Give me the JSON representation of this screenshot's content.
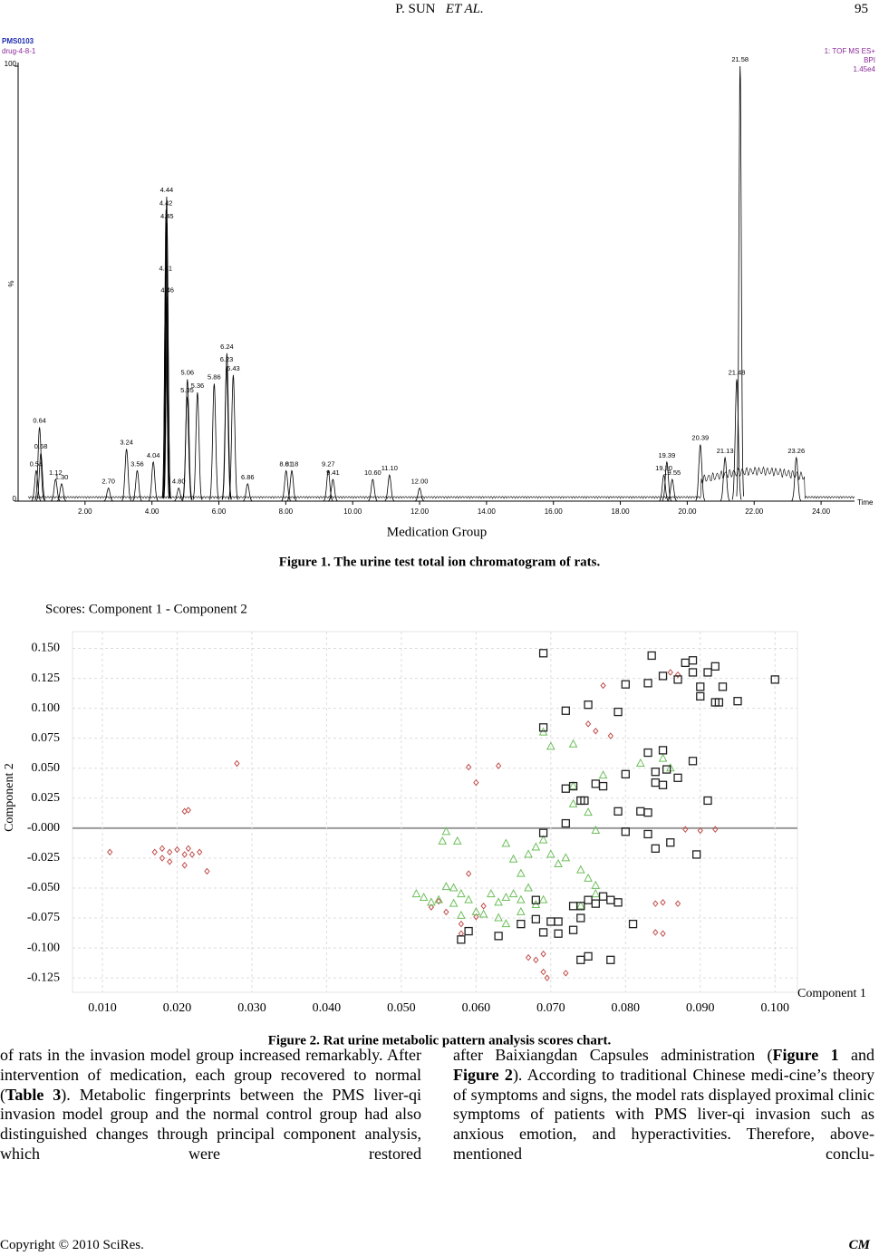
{
  "header": {
    "author": "P. SUN",
    "author_italic": "ET AL.",
    "page": "95"
  },
  "chart_data": [
    {
      "type": "line",
      "title": "Medication Group",
      "x_label": "Time",
      "y_label": "%",
      "annotations": [
        "PMS0103",
        "drug-4-8-1"
      ],
      "right_annotations": [
        "1: TOF MS ES+",
        "BPI",
        "1.45e4"
      ],
      "color": "#000000",
      "xlim": [
        0,
        25
      ],
      "ylim": [
        0,
        100
      ],
      "xticks": [
        {
          "value": 2,
          "label": "2.00"
        },
        {
          "value": 4,
          "label": "4.00"
        },
        {
          "value": 6,
          "label": "6.00"
        },
        {
          "value": 8,
          "label": "8.00"
        },
        {
          "value": 10,
          "label": "10.00"
        },
        {
          "value": 12,
          "label": "12.00"
        },
        {
          "value": 14,
          "label": "14.00"
        },
        {
          "value": 16,
          "label": "16.00"
        },
        {
          "value": 18,
          "label": "18.00"
        },
        {
          "value": 20,
          "label": "20.00"
        },
        {
          "value": 22,
          "label": "22.00"
        },
        {
          "value": 24,
          "label": "24.00"
        }
      ],
      "yticks": [
        0,
        100
      ],
      "peaks": [
        {
          "x": 0.54,
          "label": "0.54",
          "y": 7
        },
        {
          "x": 0.64,
          "label": "0.64",
          "y": 17
        },
        {
          "x": 0.68,
          "label": "0.68",
          "y": 11
        },
        {
          "x": 1.12,
          "label": "1.12",
          "y": 5
        },
        {
          "x": 1.3,
          "label": "1.30",
          "y": 4
        },
        {
          "x": 2.7,
          "label": "2.70",
          "y": 3
        },
        {
          "x": 3.24,
          "label": "3.24",
          "y": 12
        },
        {
          "x": 3.56,
          "label": "3.56",
          "y": 7
        },
        {
          "x": 4.04,
          "label": "4.04",
          "y": 9
        },
        {
          "x": 4.41,
          "label": "4.41",
          "y": 52
        },
        {
          "x": 4.42,
          "label": "4.42",
          "y": 67
        },
        {
          "x": 4.44,
          "label": "4.44",
          "y": 70
        },
        {
          "x": 4.45,
          "label": "4.45",
          "y": 64
        },
        {
          "x": 4.46,
          "label": "4.46",
          "y": 47
        },
        {
          "x": 4.8,
          "label": "4.80",
          "y": 3
        },
        {
          "x": 5.05,
          "label": "5.05",
          "y": 24
        },
        {
          "x": 5.06,
          "label": "5.06",
          "y": 28
        },
        {
          "x": 5.36,
          "label": "5.36",
          "y": 25
        },
        {
          "x": 5.86,
          "label": "5.86",
          "y": 27
        },
        {
          "x": 6.23,
          "label": "6.23",
          "y": 31
        },
        {
          "x": 6.24,
          "label": "6.24",
          "y": 34
        },
        {
          "x": 6.43,
          "label": "6.43",
          "y": 29
        },
        {
          "x": 6.86,
          "label": "6.86",
          "y": 4
        },
        {
          "x": 8.01,
          "label": "8.01",
          "y": 7
        },
        {
          "x": 8.18,
          "label": "8.18",
          "y": 7
        },
        {
          "x": 9.27,
          "label": "9.27",
          "y": 7
        },
        {
          "x": 9.41,
          "label": "9.41",
          "y": 5
        },
        {
          "x": 10.6,
          "label": "10.60",
          "y": 5
        },
        {
          "x": 11.1,
          "label": "11.10",
          "y": 6
        },
        {
          "x": 12,
          "label": "12.00",
          "y": 3
        },
        {
          "x": 19.3,
          "label": "19.30",
          "y": 6
        },
        {
          "x": 19.39,
          "label": "19.39",
          "y": 9
        },
        {
          "x": 19.55,
          "label": "19.55",
          "y": 5
        },
        {
          "x": 20.39,
          "label": "20.39",
          "y": 13
        },
        {
          "x": 21.13,
          "label": "21.13",
          "y": 10
        },
        {
          "x": 21.48,
          "label": "21.48",
          "y": 28
        },
        {
          "x": 21.58,
          "label": "21.58",
          "y": 100
        },
        {
          "x": 23.26,
          "label": "23.26",
          "y": 10
        }
      ]
    },
    {
      "type": "scatter",
      "title": "Scores: Component 1 - Component 2",
      "x_label": "Component 1",
      "y_label": "Component 2",
      "xlim": [
        0.006,
        0.103
      ],
      "ylim": [
        -0.137,
        0.164
      ],
      "grid": true,
      "xticks": [
        {
          "value": 0.01,
          "label": "0.010"
        },
        {
          "value": 0.02,
          "label": "0.020"
        },
        {
          "value": 0.03,
          "label": "0.030"
        },
        {
          "value": 0.04,
          "label": "0.040"
        },
        {
          "value": 0.05,
          "label": "0.050"
        },
        {
          "value": 0.06,
          "label": "0.060"
        },
        {
          "value": 0.07,
          "label": "0.070"
        },
        {
          "value": 0.08,
          "label": "0.080"
        },
        {
          "value": 0.09,
          "label": "0.090"
        },
        {
          "value": 0.1,
          "label": "0.100"
        }
      ],
      "yticks": [
        {
          "value": 0.15,
          "label": "0.150"
        },
        {
          "value": 0.125,
          "label": "0.125"
        },
        {
          "value": 0.1,
          "label": "0.100"
        },
        {
          "value": 0.075,
          "label": "0.075"
        },
        {
          "value": 0.05,
          "label": "0.050"
        },
        {
          "value": 0.025,
          "label": "0.025"
        },
        {
          "value": 0,
          "label": "-0.000"
        },
        {
          "value": -0.025,
          "label": "-0.025"
        },
        {
          "value": -0.05,
          "label": "-0.050"
        },
        {
          "value": -0.075,
          "label": "-0.075"
        },
        {
          "value": -0.1,
          "label": "-0.100"
        },
        {
          "value": -0.125,
          "label": "-0.125"
        }
      ],
      "series": [
        {
          "color": "#c0504d",
          "marker": "diamond",
          "x": [
            0.011,
            0.017,
            0.018,
            0.018,
            0.019,
            0.019,
            0.02,
            0.021,
            0.021,
            0.0215,
            0.022,
            0.023,
            0.024,
            0.021,
            0.0215,
            0.028,
            0.059,
            0.06,
            0.063,
            0.077,
            0.076,
            0.075,
            0.078,
            0.086,
            0.087,
            0.092,
            0.09,
            0.088,
            0.059,
            0.06,
            0.058,
            0.055,
            0.056,
            0.054,
            0.058,
            0.061,
            0.067,
            0.068,
            0.069,
            0.0695,
            0.072,
            0.069,
            0.084,
            0.085,
            0.087,
            0.084,
            0.085
          ],
          "values": [
            -0.02,
            -0.02,
            -0.017,
            -0.025,
            -0.02,
            -0.028,
            -0.018,
            -0.022,
            -0.031,
            -0.017,
            -0.022,
            -0.02,
            -0.036,
            0.014,
            0.015,
            0.054,
            0.051,
            0.038,
            0.052,
            0.119,
            0.081,
            0.087,
            0.077,
            0.13,
            0.128,
            -0.001,
            -0.002,
            -0.001,
            -0.038,
            -0.074,
            -0.08,
            -0.061,
            -0.07,
            -0.066,
            -0.088,
            -0.065,
            -0.108,
            -0.11,
            -0.12,
            -0.125,
            -0.121,
            -0.105,
            -0.063,
            -0.062,
            -0.063,
            -0.087,
            -0.088
          ]
        },
        {
          "color": "#6cbf5a",
          "marker": "triangle",
          "x": [
            0.052,
            0.053,
            0.054,
            0.055,
            0.056,
            0.057,
            0.057,
            0.058,
            0.058,
            0.059,
            0.06,
            0.061,
            0.062,
            0.063,
            0.063,
            0.064,
            0.064,
            0.065,
            0.066,
            0.066,
            0.067,
            0.068,
            0.069,
            0.066,
            0.065,
            0.064,
            0.067,
            0.068,
            0.069,
            0.07,
            0.071,
            0.072,
            0.074,
            0.075,
            0.076,
            0.074,
            0.076,
            0.073,
            0.073,
            0.075,
            0.076,
            0.069,
            0.07,
            0.073,
            0.077,
            0.082,
            0.085,
            0.086,
            0.056,
            0.0555,
            0.0575
          ],
          "values": [
            -0.055,
            -0.058,
            -0.062,
            -0.06,
            -0.049,
            -0.05,
            -0.063,
            -0.055,
            -0.073,
            -0.06,
            -0.07,
            -0.072,
            -0.055,
            -0.062,
            -0.075,
            -0.058,
            -0.08,
            -0.055,
            -0.06,
            -0.07,
            -0.05,
            -0.064,
            -0.06,
            -0.038,
            -0.026,
            -0.013,
            -0.022,
            -0.016,
            -0.01,
            -0.022,
            -0.03,
            -0.025,
            -0.035,
            -0.042,
            -0.048,
            -0.065,
            -0.055,
            0.02,
            0.035,
            0.013,
            -0.002,
            0.08,
            0.068,
            0.07,
            0.044,
            0.054,
            0.058,
            0.05,
            -0.003,
            -0.011,
            -0.011
          ]
        },
        {
          "color": "#222222",
          "marker": "square",
          "x": [
            0.069,
            0.069,
            0.072,
            0.075,
            0.079,
            0.08,
            0.083,
            0.0835,
            0.085,
            0.087,
            0.088,
            0.089,
            0.089,
            0.091,
            0.092,
            0.093,
            0.09,
            0.09,
            0.092,
            0.0925,
            0.095,
            0.1,
            0.083,
            0.085,
            0.084,
            0.0855,
            0.084,
            0.085,
            0.089,
            0.087,
            0.091,
            0.082,
            0.083,
            0.077,
            0.079,
            0.08,
            0.072,
            0.073,
            0.074,
            0.0745,
            0.072,
            0.069,
            0.083,
            0.084,
            0.086,
            0.0895,
            0.076,
            0.08,
            0.068,
            0.068,
            0.07,
            0.071,
            0.073,
            0.074,
            0.075,
            0.076,
            0.077,
            0.078,
            0.079,
            0.074,
            0.071,
            0.073,
            0.069,
            0.066,
            0.063,
            0.059,
            0.058,
            0.075,
            0.074,
            0.078,
            0.081
          ],
          "values": [
            0.146,
            0.084,
            0.098,
            0.103,
            0.097,
            0.12,
            0.121,
            0.144,
            0.127,
            0.124,
            0.138,
            0.14,
            0.13,
            0.13,
            0.135,
            0.118,
            0.118,
            0.11,
            0.105,
            0.105,
            0.106,
            0.124,
            0.063,
            0.065,
            0.047,
            0.049,
            0.038,
            0.036,
            0.056,
            0.042,
            0.023,
            0.014,
            0.013,
            0.035,
            0.014,
            -0.003,
            0.033,
            0.035,
            0.023,
            0.023,
            0.004,
            -0.004,
            -0.005,
            -0.017,
            -0.012,
            -0.022,
            0.037,
            0.045,
            -0.06,
            -0.076,
            -0.078,
            -0.078,
            -0.065,
            -0.065,
            -0.06,
            -0.063,
            -0.057,
            -0.06,
            -0.062,
            -0.075,
            -0.088,
            -0.085,
            -0.087,
            -0.08,
            -0.09,
            -0.086,
            -0.093,
            -0.107,
            -0.11,
            -0.11,
            -0.08
          ]
        }
      ]
    }
  ],
  "captions": [
    "Figure 1. The urine test total ion chromatogram of rats.",
    "Figure 2. Rat urine metabolic pattern analysis scores chart."
  ],
  "body": {
    "left": [
      {
        "text": "of rats in the invasion model group increased remarkably. After intervention of medication, each group recovered to normal (",
        "bold": false
      },
      {
        "text": "Table 3",
        "bold": true
      },
      {
        "text": "). Metabolic fingerprints between the PMS liver-qi invasion model group and the normal control group had also distinguished changes through principal component analysis, which were restored",
        "bold": false
      }
    ],
    "right": [
      {
        "text": "after Baixiangdan Capsules administration (",
        "bold": false
      },
      {
        "text": "Figure 1",
        "bold": true
      },
      {
        "text": " and ",
        "bold": false
      },
      {
        "text": "Figure 2",
        "bold": true
      },
      {
        "text": "). According to traditional Chinese medi-cine’s theory of symptoms and signs, the model rats displayed proximal clinic symptoms of patients with PMS liver-qi invasion such as anxious emotion, and hyperactivities. Therefore, above-mentioned conclu-",
        "bold": false
      }
    ]
  },
  "footer": {
    "copyright": "Copyright © 2010 SciRes.",
    "journal": "CM"
  }
}
